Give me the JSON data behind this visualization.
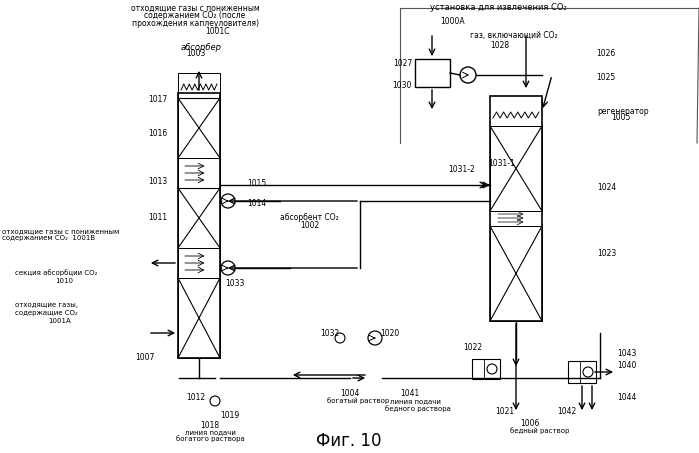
{
  "title": "Фиг. 10",
  "bg_color": "#ffffff",
  "line_color": "#000000",
  "text_color": "#000000",
  "fig_width": 6.99,
  "fig_height": 4.53,
  "dpi": 100,
  "labels": {
    "top_left_title": "отходящие газы с пониженным\nсодержанием CO₂ (после\nпрохождения каплеуловителя)",
    "label_1001C": "1001C",
    "label_absorber": "абсорбер\n1003",
    "label_1017": "1017",
    "label_1016": "1016",
    "label_1013": "1013",
    "label_1011": "1011",
    "label_co2_low_1001B": "отходящие газы с пониженным\nсодержанием CO₂  1001B",
    "label_section": "секция абсорбции CO₂\n1010",
    "label_co2_gas": "отходящие газы,\nсодержащие CO₂\n1001A",
    "label_1007": "1007",
    "label_1012": "1012",
    "label_1018": "1018\nлиния подачи\nбогатого раствора",
    "label_1019": "1019",
    "label_1015": "1015",
    "label_1014": "1014",
    "label_absorbent": "абсорбент CO₂\n1002",
    "label_1033": "1033",
    "label_1032": "1032",
    "label_1020": "1020",
    "label_1004": "1004\nбогатый раствор",
    "label_1041": "1041\nлиния подачи\nбедного раствора",
    "label_top_right": "установка для извлечения CO₂",
    "label_1000A": "1000A",
    "label_co2_gas_right": "газ, включающий CO₂",
    "label_1028": "1028",
    "label_1026": "1026",
    "label_1027": "1027",
    "label_1030": "1030",
    "label_1025": "1025",
    "label_regenerator": "регенератор\n1005",
    "label_1031_2": "1031-2",
    "label_1031_1": "1031-1",
    "label_1024": "1024",
    "label_1023": "1023",
    "label_1022": "1022",
    "label_1021": "1021",
    "label_1006": "1006\nбедный раствор",
    "label_1042": "1042",
    "label_1043": "1043",
    "label_1040": "1040",
    "label_1044": "1044"
  }
}
